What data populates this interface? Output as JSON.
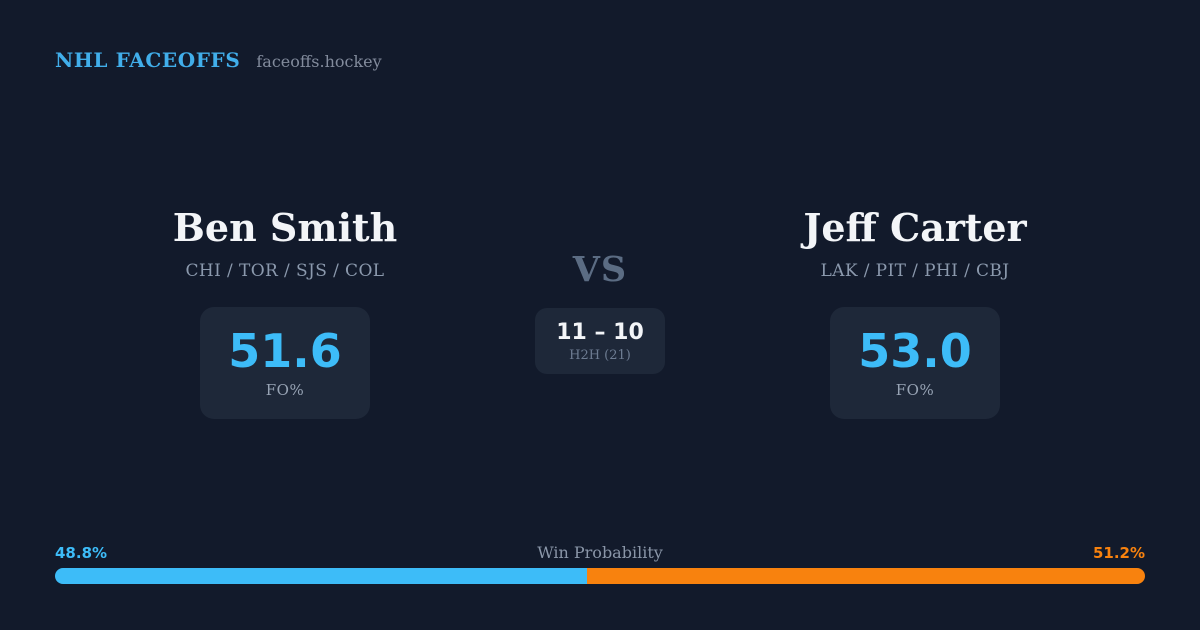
{
  "header": {
    "brand": "NHL FACEOFFS",
    "site": "faceoffs.hockey"
  },
  "matchup": {
    "left": {
      "name": "Ben Smith",
      "teams": "CHI / TOR / SJS / COL",
      "fo_pct": "51.6",
      "fo_label": "FO%"
    },
    "center": {
      "vs_label": "VS",
      "h2h_score": "11 – 10",
      "h2h_label": "H2H (21)"
    },
    "right": {
      "name": "Jeff Carter",
      "teams": "LAK / PIT / PHI / CBJ",
      "fo_pct": "53.0",
      "fo_label": "FO%"
    }
  },
  "win_probability": {
    "title": "Win Probability",
    "left_label": "48.8%",
    "right_label": "51.2%",
    "left_value": 48.8,
    "right_value": 51.2,
    "left_color": "#3dbcf8",
    "right_color": "#f8820e"
  },
  "colors": {
    "background": "#121a2b",
    "card": "#1e2839",
    "accent_blue": "#3dbcf8",
    "accent_orange": "#f8820e",
    "brand_blue": "#41aeea",
    "text_primary": "#f3f5f8",
    "text_muted": "#8b99ad"
  }
}
